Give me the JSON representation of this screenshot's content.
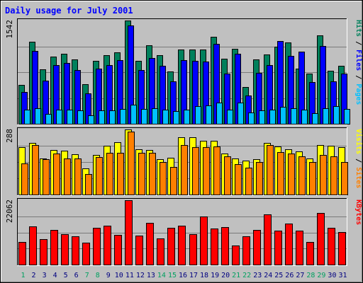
{
  "chart_data": {
    "type": "bar",
    "title": "Daily usage for July 2001",
    "categories": [
      "1",
      "2",
      "3",
      "4",
      "5",
      "6",
      "7",
      "8",
      "9",
      "10",
      "11",
      "12",
      "13",
      "14",
      "15",
      "16",
      "17",
      "18",
      "19",
      "20",
      "21",
      "22",
      "23",
      "24",
      "25",
      "26",
      "27",
      "28",
      "29",
      "30",
      "31"
    ],
    "weekend_days": [
      "1",
      "7",
      "8",
      "14",
      "15",
      "21",
      "22",
      "28",
      "29"
    ],
    "panels": [
      {
        "id": "top",
        "ymax": 1542,
        "ymax_label": "1542",
        "side_labels": [
          "Pages",
          "Files",
          "Hits"
        ],
        "side_separator": " / ",
        "series": [
          {
            "name": "Hits",
            "color": "#00805c",
            "values": [
              584,
              1222,
              810,
              1008,
              1044,
              957,
              590,
              937,
              1020,
              1066,
              1542,
              940,
              1172,
              1025,
              785,
              1114,
              1111,
              1104,
              1300,
              976,
              1123,
              553,
              964,
              1030,
              1156,
              1219,
              827,
              745,
              1322,
              791,
              868
            ]
          },
          {
            "name": "Files",
            "color": "#0000ff",
            "values": [
              475,
              1084,
              648,
              875,
              911,
              807,
              455,
              826,
              880,
              955,
              1463,
              798,
              986,
              868,
              630,
              952,
              939,
              930,
              1190,
              746,
              1044,
              427,
              765,
              873,
              1240,
              1011,
              1082,
              625,
              1164,
              636,
              746
            ]
          },
          {
            "name": "Pages",
            "color": "#00c0ff",
            "values": [
              207,
              234,
              148,
              212,
              211,
              200,
              131,
              201,
              198,
              224,
              280,
              220,
              230,
              209,
              192,
              216,
              265,
              276,
              322,
              214,
              316,
              174,
              198,
              213,
              255,
              228,
              209,
              161,
              235,
              259,
              220
            ]
          }
        ]
      },
      {
        "id": "middle",
        "ymax": 288,
        "ymax_label": "288",
        "side_labels": [
          "Sites",
          "Visits"
        ],
        "side_separator": " / ",
        "series": [
          {
            "name": "Visits",
            "color": "#ffff00",
            "values": [
              210,
              230,
              160,
              196,
              195,
              179,
              115,
              176,
              216,
              233,
              288,
              200,
              196,
              157,
              164,
              254,
              253,
              238,
              237,
              180,
              160,
              149,
              155,
              229,
              213,
              200,
              190,
              161,
              220,
              216,
              210
            ]
          },
          {
            "name": "Sites",
            "color": "#ff8000",
            "values": [
              138,
              220,
              155,
              181,
              161,
              160,
              90,
              165,
              184,
              185,
              278,
              185,
              184,
              144,
              122,
              219,
              211,
              211,
              212,
              170,
              136,
              120,
              143,
              219,
              189,
              180,
              170,
              145,
              176,
              169,
              144
            ]
          }
        ]
      },
      {
        "id": "bottom",
        "ymax": 22062,
        "ymax_label": "22062",
        "side_labels": [
          "KBytes"
        ],
        "side_separator": "",
        "series": [
          {
            "name": "KBytes",
            "color": "#ff0000",
            "values": [
              7800,
              13200,
              8800,
              11800,
              10400,
              9600,
              7400,
              12700,
              13300,
              10100,
              22062,
              9900,
              14200,
              8900,
              12500,
              13300,
              10500,
              16400,
              12300,
              12800,
              6500,
              9800,
              12000,
              17200,
              11600,
              14100,
              11600,
              7700,
              17600,
              12600,
              11200
            ]
          }
        ]
      }
    ],
    "colors": {
      "background": "#c0c0c0",
      "outer_background": "#ffffff",
      "title": "#0000ff",
      "gridline": "#7a7a7a",
      "day_label": "#000080",
      "weekend_label": "#00a060"
    }
  }
}
